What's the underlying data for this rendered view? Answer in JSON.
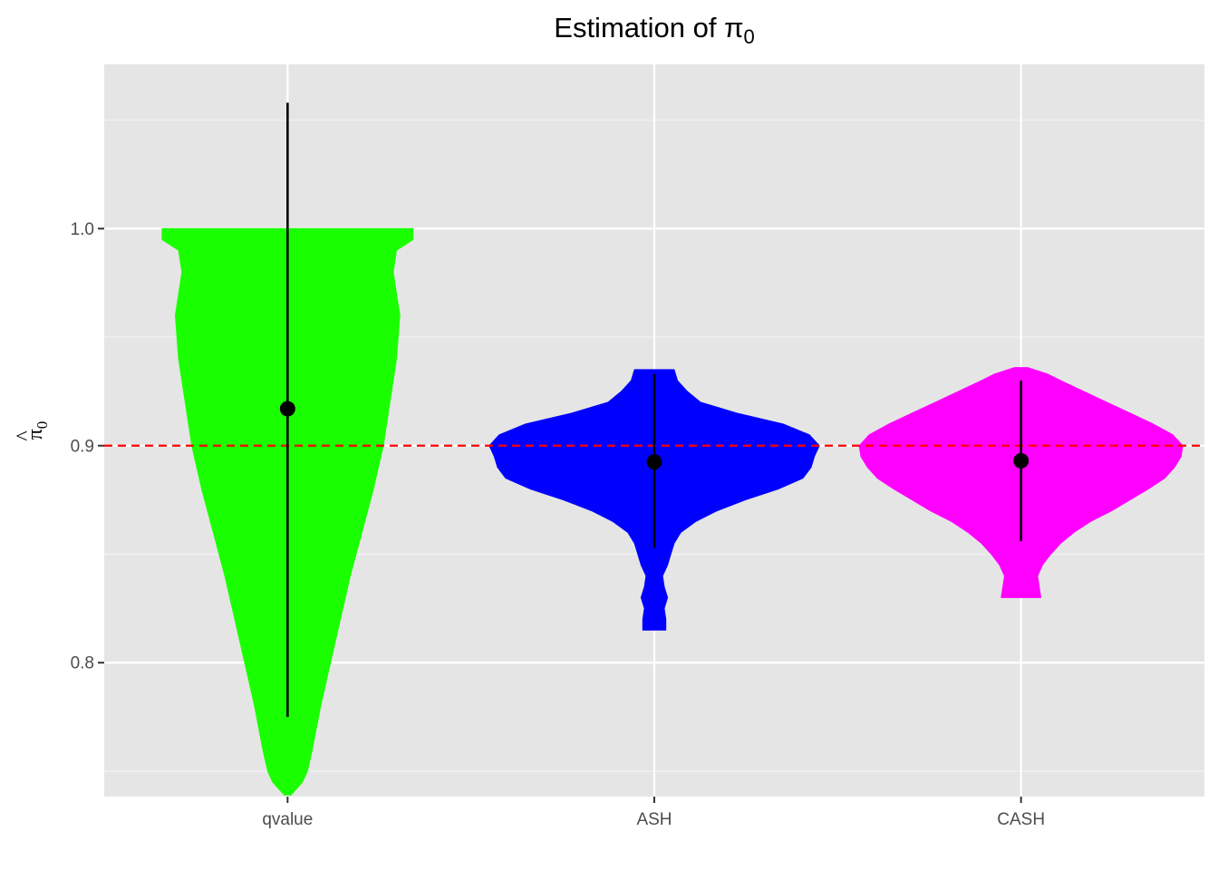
{
  "chart_data": {
    "type": "violin",
    "title": "Estimation of π",
    "title_subscript": "0",
    "ylabel": "π",
    "ylabel_hat": "^",
    "ylabel_subscript": "0",
    "xlabel": "",
    "categories": [
      "qvalue",
      "ASH",
      "CASH"
    ],
    "ylim": [
      0.7383,
      1.0757
    ],
    "yticks": [
      0.8,
      0.9,
      1.0
    ],
    "ytick_labels": [
      "0.8",
      "0.9",
      "1.0"
    ],
    "reference_line": {
      "y": 0.9,
      "color": "#ff0000",
      "style": "dashed"
    },
    "grid": true,
    "series": [
      {
        "category": "qvalue",
        "color": "#1aff00",
        "mean": 0.917,
        "interval": [
          0.775,
          1.058
        ],
        "range": [
          0.739,
          1.0
        ],
        "density": [
          [
            0.739,
            0.02
          ],
          [
            0.745,
            0.09
          ],
          [
            0.75,
            0.12
          ],
          [
            0.76,
            0.15
          ],
          [
            0.78,
            0.2
          ],
          [
            0.8,
            0.26
          ],
          [
            0.82,
            0.32
          ],
          [
            0.84,
            0.38
          ],
          [
            0.86,
            0.45
          ],
          [
            0.88,
            0.52
          ],
          [
            0.9,
            0.58
          ],
          [
            0.92,
            0.62
          ],
          [
            0.94,
            0.66
          ],
          [
            0.96,
            0.68
          ],
          [
            0.98,
            0.64
          ],
          [
            0.99,
            0.66
          ],
          [
            0.995,
            0.76
          ],
          [
            1.0,
            0.76
          ]
        ]
      },
      {
        "category": "ASH",
        "color": "#0000ff",
        "mean": 0.8925,
        "interval": [
          0.853,
          0.933
        ],
        "range": [
          0.815,
          0.935
        ],
        "density": [
          [
            0.815,
            0.07
          ],
          [
            0.82,
            0.07
          ],
          [
            0.825,
            0.06
          ],
          [
            0.83,
            0.08
          ],
          [
            0.835,
            0.06
          ],
          [
            0.84,
            0.05
          ],
          [
            0.845,
            0.08
          ],
          [
            0.85,
            0.1
          ],
          [
            0.855,
            0.12
          ],
          [
            0.86,
            0.16
          ],
          [
            0.865,
            0.25
          ],
          [
            0.87,
            0.38
          ],
          [
            0.875,
            0.55
          ],
          [
            0.88,
            0.75
          ],
          [
            0.885,
            0.9
          ],
          [
            0.89,
            0.95
          ],
          [
            0.895,
            0.97
          ],
          [
            0.9,
            1.0
          ],
          [
            0.905,
            0.94
          ],
          [
            0.91,
            0.78
          ],
          [
            0.915,
            0.5
          ],
          [
            0.92,
            0.28
          ],
          [
            0.925,
            0.2
          ],
          [
            0.93,
            0.14
          ],
          [
            0.935,
            0.12
          ]
        ]
      },
      {
        "category": "CASH",
        "color": "#ff00ff",
        "mean": 0.893,
        "interval": [
          0.856,
          0.93
        ],
        "range": [
          0.83,
          0.936
        ],
        "density": [
          [
            0.83,
            0.12
          ],
          [
            0.835,
            0.11
          ],
          [
            0.84,
            0.1
          ],
          [
            0.845,
            0.13
          ],
          [
            0.85,
            0.18
          ],
          [
            0.855,
            0.24
          ],
          [
            0.86,
            0.32
          ],
          [
            0.865,
            0.42
          ],
          [
            0.87,
            0.55
          ],
          [
            0.875,
            0.66
          ],
          [
            0.88,
            0.77
          ],
          [
            0.885,
            0.87
          ],
          [
            0.89,
            0.93
          ],
          [
            0.895,
            0.97
          ],
          [
            0.9,
            0.98
          ],
          [
            0.905,
            0.92
          ],
          [
            0.91,
            0.8
          ],
          [
            0.915,
            0.66
          ],
          [
            0.92,
            0.52
          ],
          [
            0.925,
            0.38
          ],
          [
            0.93,
            0.24
          ],
          [
            0.933,
            0.16
          ],
          [
            0.936,
            0.04
          ]
        ]
      }
    ]
  }
}
